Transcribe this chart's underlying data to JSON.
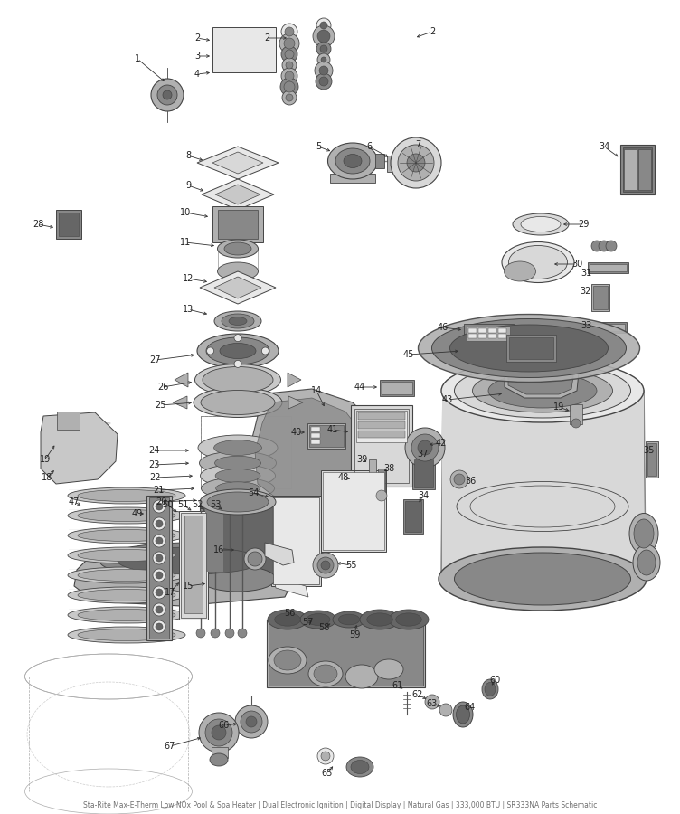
{
  "title": "Sta-Rite Max-E-Therm Low NOx Pool & Spa Heater | Dual Electronic Ignition | Digital Display | Natural Gas | 333,000 BTU | SR333NA Parts Schematic",
  "background_color": "#ffffff",
  "figsize": [
    7.52,
    9.0
  ],
  "dpi": 100,
  "label_fontsize": 7.0,
  "label_color": "#222222",
  "gray1": "#c8c8c8",
  "gray2": "#b0b0b0",
  "gray3": "#888888",
  "gray4": "#666666",
  "gray5": "#e8e8e8",
  "gray6": "#d8d8d8",
  "gray_dark": "#555555",
  "ec": "#444444"
}
